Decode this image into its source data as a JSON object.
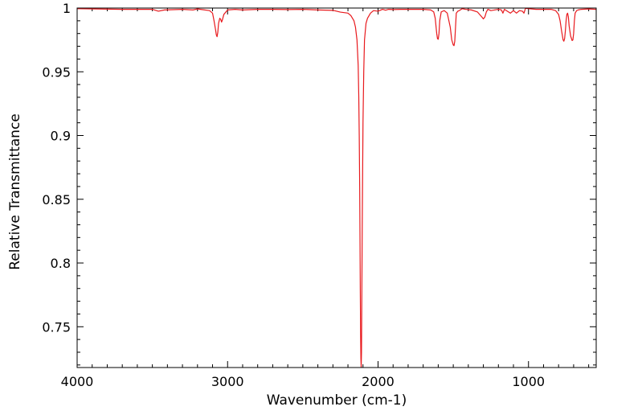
{
  "chart_data": {
    "type": "line",
    "xlabel": "Wavenumber (cm-1)",
    "ylabel": "Relative Transmittance",
    "xlim": [
      4000,
      550
    ],
    "ylim": [
      0.718,
      1.0
    ],
    "x_reversed": true,
    "x_ticks": [
      4000,
      3000,
      2000,
      1000
    ],
    "x_tick_labels": [
      "4000",
      "3000",
      "2000",
      "1000"
    ],
    "y_ticks": [
      1.0,
      0.95,
      0.9,
      0.85,
      0.8,
      0.75
    ],
    "y_tick_labels": [
      "1",
      "0.95",
      "0.9",
      "0.85",
      "0.8",
      "0.75"
    ],
    "grid": false,
    "baseline": 1.0,
    "series": [
      {
        "color": "#e8191d",
        "x": [
          4000,
          3700,
          3500,
          3460,
          3420,
          3300,
          3230,
          3200,
          3120,
          3100,
          3090,
          3080,
          3075,
          3070,
          3065,
          3060,
          3052,
          3045,
          3040,
          3035,
          3025,
          3000,
          2950,
          2900,
          2800,
          2700,
          2600,
          2500,
          2400,
          2300,
          2250,
          2200,
          2180,
          2160,
          2150,
          2140,
          2132,
          2128,
          2125,
          2122,
          2120,
          2118,
          2116,
          2114,
          2112,
          2110,
          2108,
          2105,
          2100,
          2095,
          2090,
          2080,
          2070,
          2050,
          2030,
          2000,
          1970,
          1950,
          1930,
          1900,
          1850,
          1800,
          1700,
          1650,
          1630,
          1620,
          1610,
          1605,
          1600,
          1595,
          1590,
          1580,
          1560,
          1540,
          1520,
          1510,
          1500,
          1495,
          1490,
          1485,
          1480,
          1470,
          1460,
          1440,
          1420,
          1380,
          1340,
          1310,
          1300,
          1290,
          1280,
          1270,
          1250,
          1200,
          1180,
          1170,
          1160,
          1120,
          1100,
          1080,
          1060,
          1040,
          1030,
          1020,
          1000,
          950,
          900,
          850,
          820,
          800,
          790,
          780,
          770,
          765,
          760,
          755,
          750,
          745,
          740,
          735,
          730,
          720,
          710,
          705,
          700,
          695,
          690,
          680,
          670,
          650,
          600,
          550
        ],
        "y": [
          0.9995,
          0.999,
          0.999,
          0.9975,
          0.9985,
          0.999,
          0.9985,
          0.9993,
          0.998,
          0.996,
          0.99,
          0.983,
          0.979,
          0.9775,
          0.981,
          0.988,
          0.992,
          0.991,
          0.989,
          0.9905,
          0.995,
          0.9985,
          0.999,
          0.9985,
          0.999,
          0.999,
          0.9988,
          0.999,
          0.9985,
          0.9982,
          0.9968,
          0.996,
          0.994,
          0.99,
          0.985,
          0.975,
          0.955,
          0.93,
          0.9,
          0.86,
          0.82,
          0.78,
          0.745,
          0.725,
          0.718,
          0.73,
          0.77,
          0.83,
          0.91,
          0.95,
          0.975,
          0.988,
          0.992,
          0.996,
          0.998,
          0.9975,
          0.999,
          0.9983,
          0.999,
          0.9988,
          0.999,
          0.999,
          0.999,
          0.9985,
          0.997,
          0.992,
          0.98,
          0.976,
          0.9755,
          0.98,
          0.99,
          0.997,
          0.998,
          0.996,
          0.985,
          0.975,
          0.971,
          0.9705,
          0.974,
          0.985,
          0.996,
          0.9975,
          0.998,
          0.9995,
          0.999,
          0.9985,
          0.997,
          0.993,
          0.9915,
          0.993,
          0.997,
          0.999,
          0.998,
          0.999,
          0.9985,
          0.996,
          0.999,
          0.996,
          0.998,
          0.996,
          0.998,
          0.9975,
          0.996,
          0.9998,
          0.9995,
          0.999,
          0.999,
          0.999,
          0.998,
          0.995,
          0.99,
          0.982,
          0.975,
          0.974,
          0.976,
          0.982,
          0.99,
          0.995,
          0.996,
          0.993,
          0.986,
          0.978,
          0.9745,
          0.975,
          0.98,
          0.99,
          0.996,
          0.998,
          0.9985,
          0.999,
          0.9993,
          0.999
        ]
      }
    ]
  }
}
